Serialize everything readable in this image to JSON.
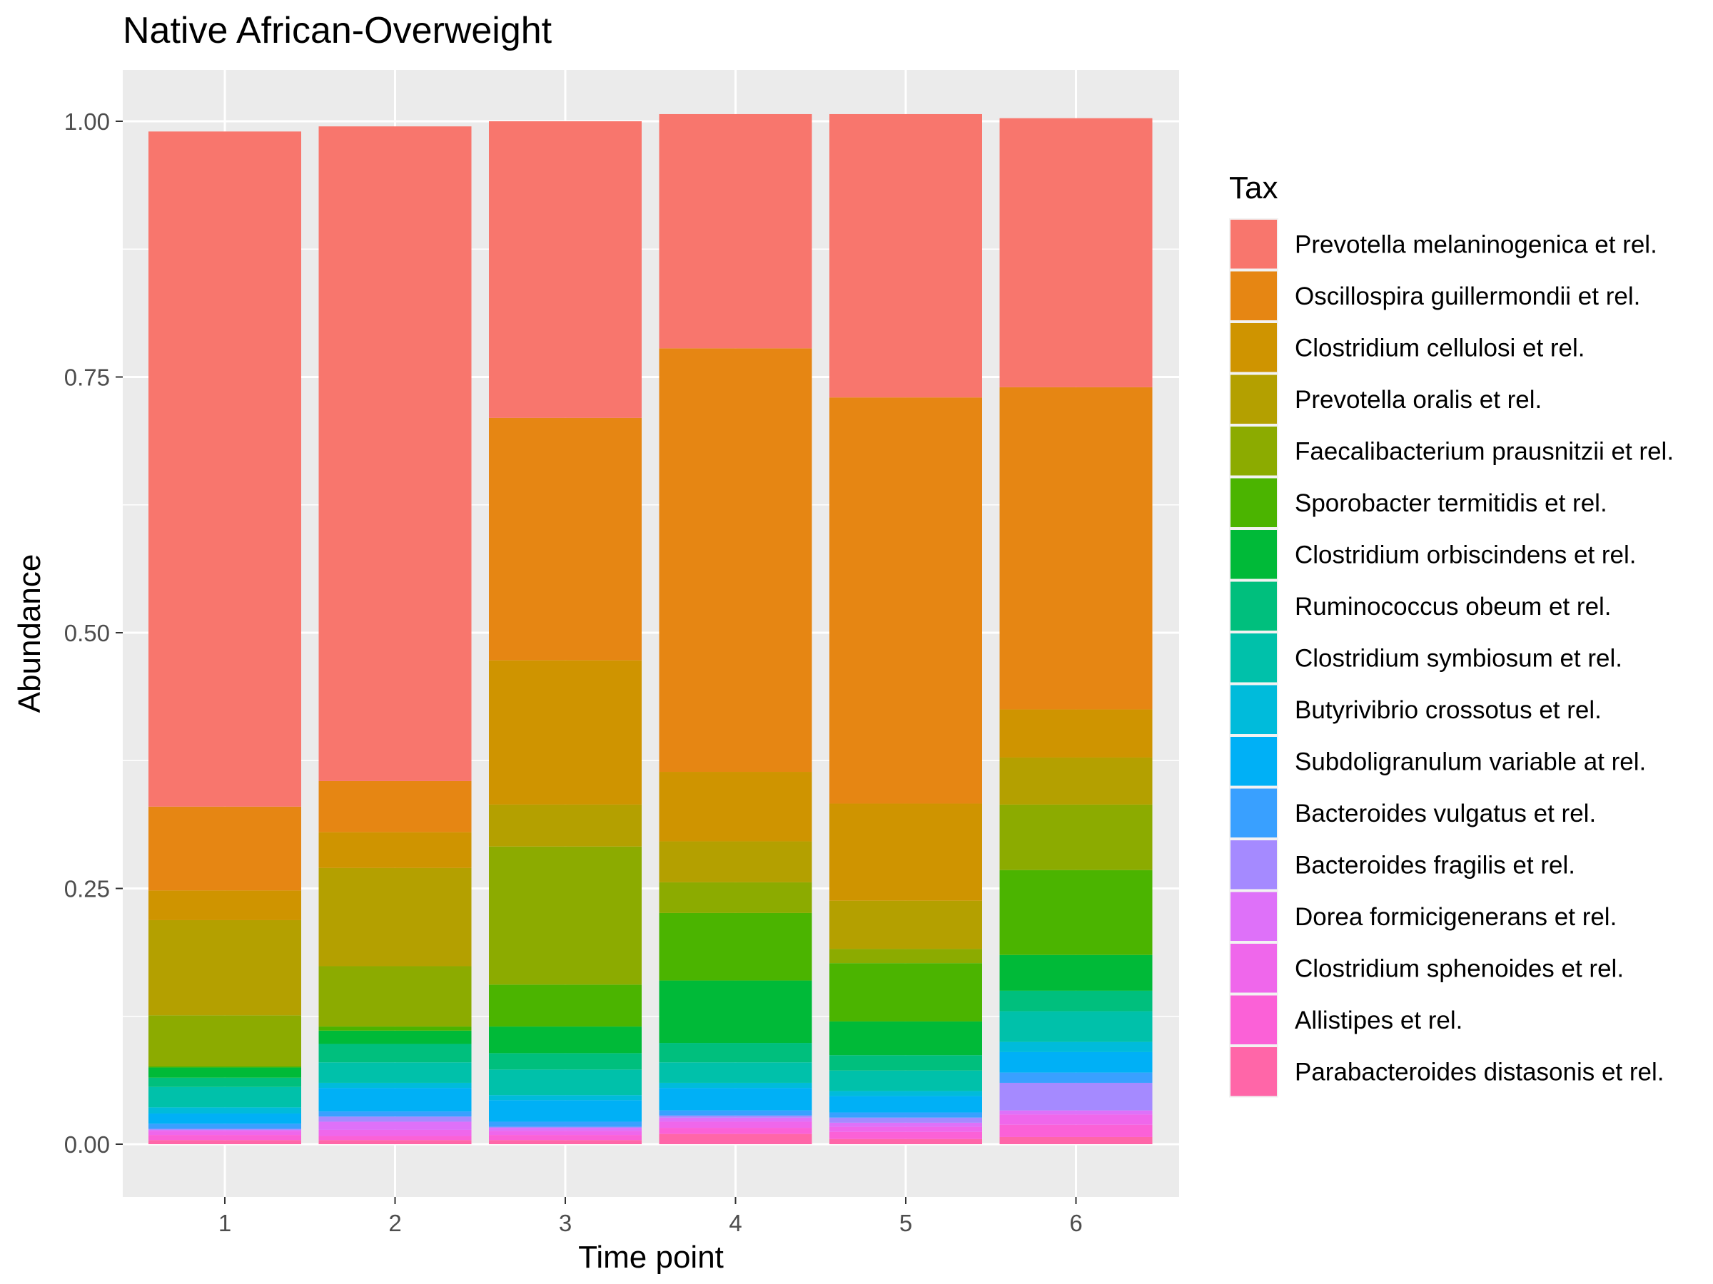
{
  "chart_data": {
    "type": "bar",
    "stacked": true,
    "title": "Native African-Overweight",
    "xlabel": "Time point",
    "ylabel": "Abundance",
    "ylim": [
      0,
      1
    ],
    "yticks": [
      "0.00",
      "0.25",
      "0.50",
      "0.75",
      "1.00"
    ],
    "ytick_values": [
      0,
      0.25,
      0.5,
      0.75,
      1.0
    ],
    "categories": [
      "1",
      "2",
      "3",
      "4",
      "5",
      "6"
    ],
    "grid": true,
    "legend": {
      "title": "Tax",
      "position": "right"
    },
    "series": [
      {
        "name": "Parabacteroides distasonis et rel.",
        "color": "#FF66A8",
        "values": [
          0.004,
          0.004,
          0.004,
          0.01,
          0.005,
          0.007
        ]
      },
      {
        "name": "Allistipes et rel.",
        "color": "#FB61D7",
        "values": [
          0.005,
          0.004,
          0.005,
          0.006,
          0.007,
          0.012
        ]
      },
      {
        "name": "Clostridium sphenoides et rel.",
        "color": "#EF67EB",
        "values": [
          0.004,
          0.006,
          0.004,
          0.006,
          0.005,
          0.01
        ]
      },
      {
        "name": "Dorea formicigenerans et rel.",
        "color": "#DE71F9",
        "values": [
          0.001,
          0.008,
          0.003,
          0.004,
          0.004,
          0.004
        ]
      },
      {
        "name": "Bacteroides fragilis et rel.",
        "color": "#A58AFF",
        "values": [
          0.001,
          0.005,
          0.001,
          0.002,
          0.005,
          0.027
        ]
      },
      {
        "name": "Bacteroides vulgatus et rel.",
        "color": "#39A0FF",
        "values": [
          0.005,
          0.005,
          0.005,
          0.005,
          0.005,
          0.01
        ]
      },
      {
        "name": "Subdoligranulum variable at rel.",
        "color": "#00B0F6",
        "values": [
          0.01,
          0.023,
          0.021,
          0.022,
          0.016,
          0.02
        ]
      },
      {
        "name": "Butyrivibrio crossotus et rel.",
        "color": "#00BBDB",
        "values": [
          0.006,
          0.005,
          0.005,
          0.005,
          0.005,
          0.01
        ]
      },
      {
        "name": "Clostridium symbiosum et rel.",
        "color": "#00C1AA",
        "values": [
          0.02,
          0.02,
          0.025,
          0.02,
          0.02,
          0.03
        ]
      },
      {
        "name": "Ruminococcus obeum et rel.",
        "color": "#00BF7D",
        "values": [
          0.009,
          0.018,
          0.016,
          0.019,
          0.015,
          0.02
        ]
      },
      {
        "name": "Clostridium orbiscindens et rel.",
        "color": "#00BA38",
        "values": [
          0.01,
          0.013,
          0.026,
          0.061,
          0.033,
          0.035
        ]
      },
      {
        "name": "Sporobacter termitidis et rel.",
        "color": "#4BB400",
        "values": [
          0.001,
          0.004,
          0.041,
          0.066,
          0.057,
          0.083
        ]
      },
      {
        "name": "Faecalibacterium prausnitzii et rel.",
        "color": "#8CAB00",
        "values": [
          0.05,
          0.059,
          0.135,
          0.03,
          0.014,
          0.064
        ]
      },
      {
        "name": "Prevotella oralis et rel.",
        "color": "#B4A000",
        "values": [
          0.093,
          0.096,
          0.041,
          0.04,
          0.047,
          0.046
        ]
      },
      {
        "name": "Clostridium cellulosi et rel.",
        "color": "#CF9400",
        "values": [
          0.029,
          0.035,
          0.141,
          0.068,
          0.095,
          0.047
        ]
      },
      {
        "name": "Oscillospira guillermondii et rel.",
        "color": "#E68613",
        "values": [
          0.082,
          0.05,
          0.237,
          0.414,
          0.397,
          0.315
        ]
      },
      {
        "name": "Prevotella melaninogenica et rel.",
        "color": "#F8766D",
        "values": [
          0.66,
          0.64,
          0.29,
          0.229,
          0.277,
          0.263
        ]
      }
    ]
  }
}
